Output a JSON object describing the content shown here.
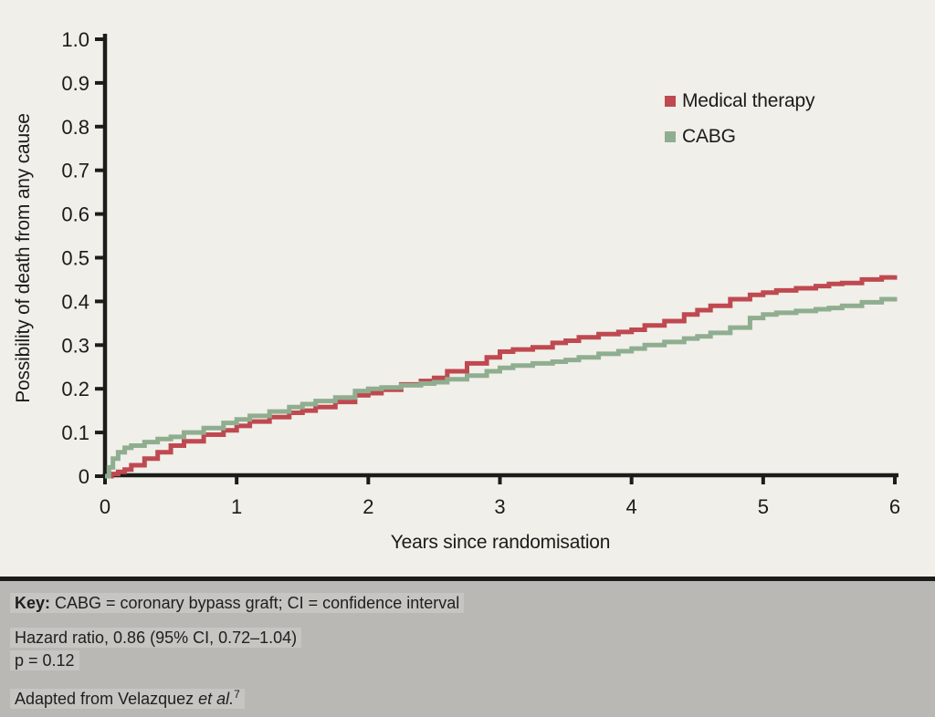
{
  "colors": {
    "background": "#f1efe9",
    "footer_background": "#b9b8b4",
    "separator": "#1c1c1a",
    "axis": "#1c1c1a",
    "medical_therapy": "#bf4950",
    "cabg": "#8fae90"
  },
  "chart_data": {
    "type": "line",
    "subtype": "kaplan-meier step curves",
    "title": "",
    "xlabel": "Years since randomisation",
    "ylabel": "Possibility of death from any cause",
    "xlim": [
      0,
      6
    ],
    "ylim": [
      0,
      1.0
    ],
    "xtick_labels": [
      "0",
      "1",
      "2",
      "3",
      "4",
      "5",
      "6"
    ],
    "xtick_values": [
      0,
      1,
      2,
      3,
      4,
      5,
      6
    ],
    "ytick_labels": [
      "0",
      "0.1",
      "0.2",
      "0.3",
      "0.4",
      "0.5",
      "0.6",
      "0.7",
      "0.8",
      "0.9",
      "1.0"
    ],
    "ytick_values": [
      0,
      0.1,
      0.2,
      0.3,
      0.4,
      0.5,
      0.6,
      0.7,
      0.8,
      0.9,
      1.0
    ],
    "grid": false,
    "legend_position": "inside top-right",
    "series": [
      {
        "name": "Medical therapy",
        "color": "#bf4950",
        "points": [
          [
            0,
            0
          ],
          [
            0.05,
            0.005
          ],
          [
            0.1,
            0.01
          ],
          [
            0.15,
            0.015
          ],
          [
            0.2,
            0.025
          ],
          [
            0.3,
            0.04
          ],
          [
            0.4,
            0.055
          ],
          [
            0.5,
            0.07
          ],
          [
            0.6,
            0.08
          ],
          [
            0.75,
            0.095
          ],
          [
            0.9,
            0.105
          ],
          [
            1.0,
            0.115
          ],
          [
            1.1,
            0.125
          ],
          [
            1.25,
            0.135
          ],
          [
            1.4,
            0.145
          ],
          [
            1.5,
            0.15
          ],
          [
            1.6,
            0.158
          ],
          [
            1.75,
            0.17
          ],
          [
            1.9,
            0.185
          ],
          [
            2.0,
            0.19
          ],
          [
            2.1,
            0.198
          ],
          [
            2.25,
            0.21
          ],
          [
            2.4,
            0.218
          ],
          [
            2.5,
            0.225
          ],
          [
            2.6,
            0.24
          ],
          [
            2.75,
            0.258
          ],
          [
            2.9,
            0.272
          ],
          [
            3.0,
            0.285
          ],
          [
            3.1,
            0.29
          ],
          [
            3.25,
            0.295
          ],
          [
            3.4,
            0.305
          ],
          [
            3.5,
            0.31
          ],
          [
            3.6,
            0.318
          ],
          [
            3.75,
            0.325
          ],
          [
            3.9,
            0.33
          ],
          [
            4.0,
            0.335
          ],
          [
            4.1,
            0.345
          ],
          [
            4.25,
            0.355
          ],
          [
            4.4,
            0.37
          ],
          [
            4.5,
            0.38
          ],
          [
            4.6,
            0.39
          ],
          [
            4.75,
            0.405
          ],
          [
            4.9,
            0.415
          ],
          [
            5.0,
            0.42
          ],
          [
            5.1,
            0.425
          ],
          [
            5.25,
            0.43
          ],
          [
            5.4,
            0.435
          ],
          [
            5.5,
            0.44
          ],
          [
            5.6,
            0.442
          ],
          [
            5.75,
            0.45
          ],
          [
            5.9,
            0.455
          ],
          [
            6.0,
            0.46
          ]
        ]
      },
      {
        "name": "CABG",
        "color": "#8fae90",
        "points": [
          [
            0,
            0
          ],
          [
            0.03,
            0.02
          ],
          [
            0.06,
            0.04
          ],
          [
            0.1,
            0.055
          ],
          [
            0.15,
            0.065
          ],
          [
            0.2,
            0.07
          ],
          [
            0.3,
            0.078
          ],
          [
            0.4,
            0.085
          ],
          [
            0.5,
            0.09
          ],
          [
            0.6,
            0.1
          ],
          [
            0.75,
            0.11
          ],
          [
            0.9,
            0.122
          ],
          [
            1.0,
            0.13
          ],
          [
            1.1,
            0.138
          ],
          [
            1.25,
            0.148
          ],
          [
            1.4,
            0.158
          ],
          [
            1.5,
            0.165
          ],
          [
            1.6,
            0.172
          ],
          [
            1.75,
            0.18
          ],
          [
            1.9,
            0.195
          ],
          [
            2.0,
            0.2
          ],
          [
            2.1,
            0.203
          ],
          [
            2.25,
            0.208
          ],
          [
            2.4,
            0.212
          ],
          [
            2.5,
            0.215
          ],
          [
            2.6,
            0.222
          ],
          [
            2.75,
            0.23
          ],
          [
            2.9,
            0.24
          ],
          [
            3.0,
            0.248
          ],
          [
            3.1,
            0.253
          ],
          [
            3.25,
            0.258
          ],
          [
            3.4,
            0.262
          ],
          [
            3.5,
            0.266
          ],
          [
            3.6,
            0.272
          ],
          [
            3.75,
            0.28
          ],
          [
            3.9,
            0.286
          ],
          [
            4.0,
            0.292
          ],
          [
            4.1,
            0.3
          ],
          [
            4.25,
            0.307
          ],
          [
            4.4,
            0.315
          ],
          [
            4.5,
            0.32
          ],
          [
            4.6,
            0.328
          ],
          [
            4.75,
            0.34
          ],
          [
            4.9,
            0.362
          ],
          [
            5.0,
            0.37
          ],
          [
            5.1,
            0.374
          ],
          [
            5.25,
            0.378
          ],
          [
            5.4,
            0.382
          ],
          [
            5.5,
            0.385
          ],
          [
            5.6,
            0.39
          ],
          [
            5.75,
            0.398
          ],
          [
            5.9,
            0.405
          ],
          [
            6.0,
            0.41
          ]
        ]
      }
    ]
  },
  "footer": {
    "key_label": "Key:",
    "key_text": " CABG = coronary bypass graft; CI = confidence interval",
    "hazard": "Hazard ratio, 0.86 (95% CI, 0.72–1.04)",
    "p_value": "p = 0.12",
    "adapted_prefix": "Adapted from Velazquez ",
    "adapted_italic": "et al.",
    "adapted_sup": "7"
  }
}
